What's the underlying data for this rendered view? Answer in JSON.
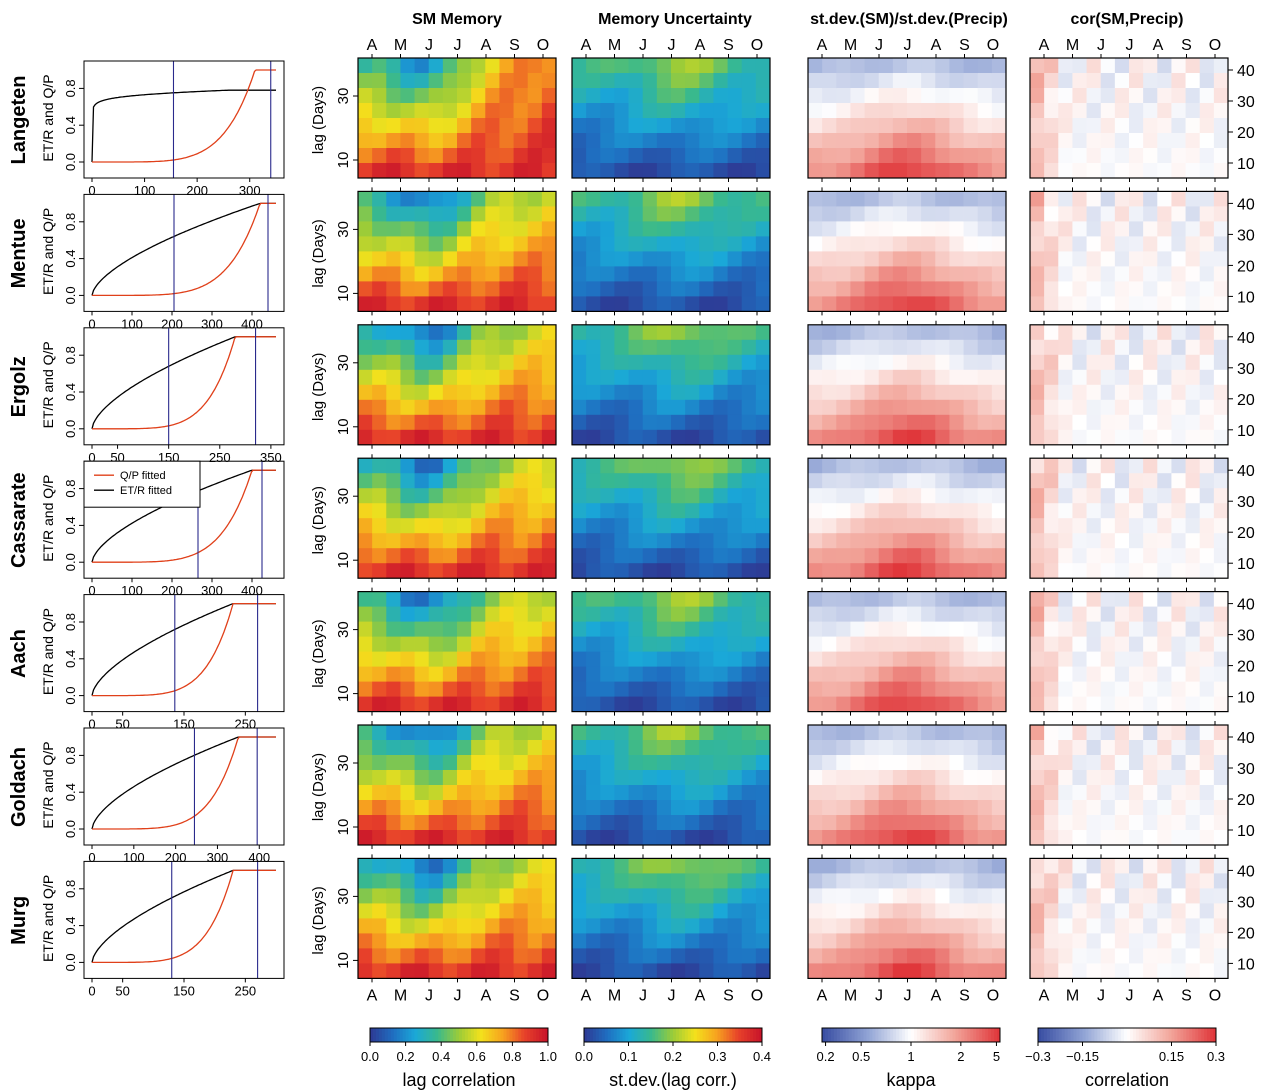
{
  "column_titles": [
    "SM Memory",
    "Memory Uncertainty",
    "st.dev.(SM)/st.dev.(Precip)",
    "cor(SM,Precip)"
  ],
  "row_labels": [
    "Langeten",
    "Mentue",
    "Ergolz",
    "Cassarate",
    "Aach",
    "Goldach",
    "Murg"
  ],
  "colorbars": [
    {
      "label": "lag correlation",
      "ticks": [
        "0.0",
        "0.2",
        "0.4",
        "0.6",
        "0.8",
        "1.0"
      ],
      "colors": [
        "#2d3c96",
        "#1f6fc1",
        "#1aa8d8",
        "#39b98d",
        "#9ccc38",
        "#f3e11c",
        "#f7a21f",
        "#e7412a",
        "#c9152a"
      ]
    },
    {
      "label": "st.dev.(lag corr.)",
      "ticks": [
        "0.0",
        "0.1",
        "0.2",
        "0.3",
        "0.4"
      ],
      "colors": [
        "#2d3c96",
        "#1f6fc1",
        "#1aa8d8",
        "#39b98d",
        "#9ccc38",
        "#f3e11c",
        "#f7a21f",
        "#e7412a",
        "#c9152a"
      ]
    },
    {
      "label": "kappa",
      "ticks": [
        "0.2",
        "0.5",
        "1",
        "2",
        "5"
      ],
      "colors": [
        "#3a4fa3",
        "#8fa2d4",
        "#ffffff",
        "#f2a59a",
        "#e0373b"
      ]
    },
    {
      "label": "correlation",
      "ticks": [
        "−0.3",
        "−0.15",
        "0.15",
        "0.3"
      ],
      "colors": [
        "#3a4fa3",
        "#8fa2d4",
        "#ffffff",
        "#f2a59a",
        "#e0373b"
      ]
    }
  ],
  "chart_data": {
    "type": "heatmap",
    "month_labels": [
      "A",
      "M",
      "J",
      "J",
      "A",
      "S",
      "O"
    ],
    "lag_axis_label": "lag (Days)",
    "lag_ticks": [
      "10",
      "30"
    ],
    "right_lag_ticks": [
      "10",
      "20",
      "30",
      "40"
    ],
    "curve_panel": {
      "y_label": "ET/R  and  Q/P",
      "y_ticks": [
        "0.0",
        "0.4",
        "0.8"
      ],
      "legend": [
        "Q/P fitted",
        "ET/R fitted"
      ],
      "legend_colors": [
        "#e0401a",
        "#000000"
      ],
      "curve_colors": {
        "et_r": "#000000",
        "q_p": "#e0401a",
        "vertical_lines": "#2a2a8c"
      }
    },
    "stations": [
      {
        "name": "Langeten",
        "x_max": 350,
        "x_ticks": [
          "0",
          "100",
          "200",
          "300"
        ],
        "et_shape": "log",
        "qp_end": 310,
        "vlines": [
          155,
          340
        ]
      },
      {
        "name": "Mentue",
        "x_max": 460,
        "x_ticks": [
          "0",
          "100",
          "200",
          "300",
          "400"
        ],
        "et_shape": "sqrt",
        "qp_end": 420,
        "vlines": [
          205,
          440
        ]
      },
      {
        "name": "Ergolz",
        "x_max": 360,
        "x_ticks": [
          "0",
          "50",
          "150",
          "250",
          "350"
        ],
        "et_shape": "sqrt",
        "qp_end": 280,
        "vlines": [
          150,
          320
        ]
      },
      {
        "name": "Cassarate",
        "x_max": 460,
        "x_ticks": [
          "0",
          "100",
          "200",
          "300",
          "400"
        ],
        "et_shape": "sqrt",
        "qp_end": 400,
        "vlines": [
          265,
          425
        ]
      },
      {
        "name": "Aach",
        "x_max": 300,
        "x_ticks": [
          "0",
          "50",
          "150",
          "250"
        ],
        "et_shape": "sqrt",
        "qp_end": 230,
        "vlines": [
          135,
          270
        ]
      },
      {
        "name": "Goldach",
        "x_max": 440,
        "x_ticks": [
          "0",
          "100",
          "200",
          "300",
          "400"
        ],
        "et_shape": "sqrt",
        "qp_end": 350,
        "vlines": [
          245,
          395
        ]
      },
      {
        "name": "Murg",
        "x_max": 300,
        "x_ticks": [
          "0",
          "50",
          "150",
          "250"
        ],
        "et_shape": "sqrt",
        "qp_end": 230,
        "vlines": [
          130,
          270
        ]
      }
    ]
  }
}
